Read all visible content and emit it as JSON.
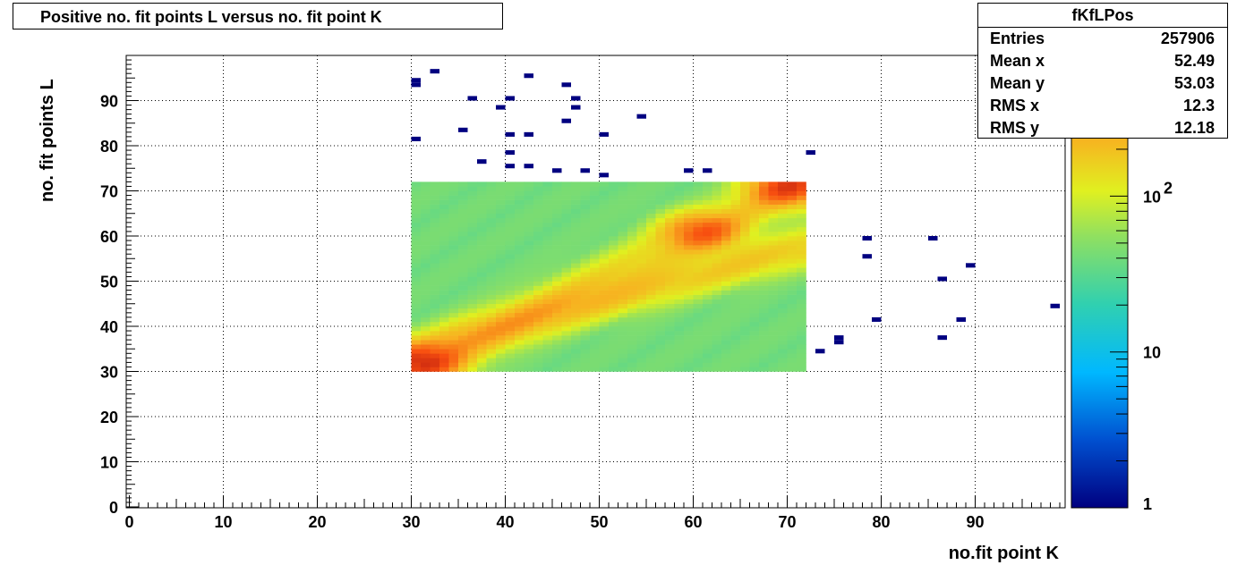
{
  "title": "Positive no. fit points L versus no. fit point K",
  "stats": {
    "name": "fKfLPos",
    "rows": [
      {
        "label": "Entries",
        "value": "257906"
      },
      {
        "label": "Mean x",
        "value": "52.49"
      },
      {
        "label": "Mean y",
        "value": "53.03"
      },
      {
        "label": "RMS x",
        "value": "12.3"
      },
      {
        "label": "RMS y",
        "value": "12.18"
      }
    ]
  },
  "chart_data": {
    "type": "heatmap",
    "title": "Positive no. fit points L versus no. fit point K",
    "xlabel": "no.fit point K",
    "ylabel": "no. fit points  L",
    "xlim": [
      0,
      99
    ],
    "ylim": [
      0,
      99
    ],
    "xticks": [
      0,
      10,
      20,
      30,
      40,
      50,
      60,
      70,
      80,
      90
    ],
    "yticks": [
      0,
      10,
      20,
      30,
      40,
      50,
      60,
      70,
      80,
      90
    ],
    "grid": true,
    "z_scale": "log",
    "z_range": [
      1,
      800
    ],
    "colorbar_labels": [
      {
        "value": 1,
        "base": "1",
        "exp": ""
      },
      {
        "value": 10,
        "base": "10",
        "exp": ""
      },
      {
        "value": 100,
        "base": "10",
        "exp": "2"
      }
    ],
    "dense_region": {
      "x": [
        30,
        72
      ],
      "y": [
        30,
        72
      ]
    },
    "hotspots": [
      {
        "x": 31,
        "y": 32,
        "value": 450
      },
      {
        "x": 61,
        "y": 61,
        "value": 300
      },
      {
        "x": 70,
        "y": 71,
        "value": 400
      }
    ],
    "sparse_points": [
      {
        "x": 32,
        "y": 96,
        "value": 1
      },
      {
        "x": 42,
        "y": 95,
        "value": 1
      },
      {
        "x": 30,
        "y": 93,
        "value": 1
      },
      {
        "x": 46,
        "y": 93,
        "value": 1
      },
      {
        "x": 36,
        "y": 90,
        "value": 1
      },
      {
        "x": 40,
        "y": 90,
        "value": 1
      },
      {
        "x": 47,
        "y": 90,
        "value": 1
      },
      {
        "x": 39,
        "y": 88,
        "value": 1
      },
      {
        "x": 47,
        "y": 88,
        "value": 1
      },
      {
        "x": 54,
        "y": 86,
        "value": 1
      },
      {
        "x": 46,
        "y": 85,
        "value": 1
      },
      {
        "x": 35,
        "y": 83,
        "value": 1
      },
      {
        "x": 40,
        "y": 82,
        "value": 1
      },
      {
        "x": 42,
        "y": 82,
        "value": 1
      },
      {
        "x": 50,
        "y": 82,
        "value": 1
      },
      {
        "x": 30,
        "y": 81,
        "value": 1
      },
      {
        "x": 40,
        "y": 78,
        "value": 1
      },
      {
        "x": 72,
        "y": 78,
        "value": 1
      },
      {
        "x": 37,
        "y": 76,
        "value": 1
      },
      {
        "x": 40,
        "y": 75,
        "value": 1
      },
      {
        "x": 42,
        "y": 75,
        "value": 1
      },
      {
        "x": 45,
        "y": 74,
        "value": 1
      },
      {
        "x": 48,
        "y": 74,
        "value": 1
      },
      {
        "x": 59,
        "y": 74,
        "value": 1
      },
      {
        "x": 61,
        "y": 74,
        "value": 1
      },
      {
        "x": 50,
        "y": 73,
        "value": 1
      },
      {
        "x": 78,
        "y": 59,
        "value": 1
      },
      {
        "x": 85,
        "y": 59,
        "value": 1
      },
      {
        "x": 78,
        "y": 55,
        "value": 1
      },
      {
        "x": 89,
        "y": 53,
        "value": 1
      },
      {
        "x": 86,
        "y": 50,
        "value": 1
      },
      {
        "x": 98,
        "y": 44,
        "value": 1
      },
      {
        "x": 79,
        "y": 41,
        "value": 1
      },
      {
        "x": 88,
        "y": 41,
        "value": 1
      },
      {
        "x": 86,
        "y": 37,
        "value": 1
      },
      {
        "x": 75,
        "y": 37,
        "value": 1
      },
      {
        "x": 75,
        "y": 36,
        "value": 1
      },
      {
        "x": 73,
        "y": 34,
        "value": 1
      },
      {
        "x": 30,
        "y": 94,
        "value": 1
      }
    ]
  }
}
